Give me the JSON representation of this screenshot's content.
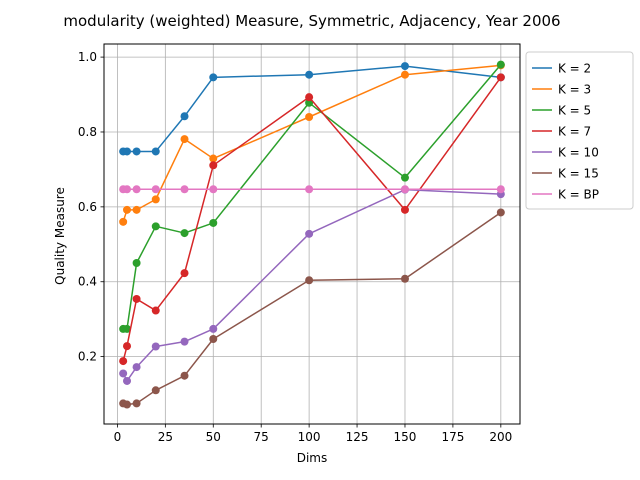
{
  "chart_data": {
    "type": "line",
    "title": "modularity (weighted) Measure, Symmetric, Adjacency, Year 2006",
    "xlabel": "Dims",
    "ylabel": "Quality Measure",
    "xlim": [
      -7,
      210
    ],
    "ylim": [
      0.02,
      1.035
    ],
    "xticks": [
      0,
      25,
      50,
      75,
      100,
      125,
      150,
      175,
      200
    ],
    "yticks": [
      0.2,
      0.4,
      0.6,
      0.8,
      1.0
    ],
    "xtick_labels": [
      "0",
      "25",
      "50",
      "75",
      "100",
      "125",
      "150",
      "175",
      "200"
    ],
    "ytick_labels": [
      "0.2",
      "0.4",
      "0.6",
      "0.8",
      "1.0"
    ],
    "grid": true,
    "legend_position": "outside-top-right",
    "x": [
      3,
      5,
      10,
      20,
      35,
      50,
      100,
      150,
      200
    ],
    "series": [
      {
        "name": "K = 2",
        "color": "#1f77b4",
        "values": [
          0.748,
          0.748,
          0.748,
          0.748,
          0.842,
          0.946,
          0.953,
          0.976,
          0.946
        ]
      },
      {
        "name": "K = 3",
        "color": "#ff7f0e",
        "values": [
          0.56,
          0.592,
          0.592,
          0.62,
          0.781,
          0.729,
          0.84,
          0.953,
          0.978
        ]
      },
      {
        "name": "K = 5",
        "color": "#2ca02c",
        "values": [
          0.274,
          0.274,
          0.45,
          0.548,
          0.53,
          0.557,
          0.878,
          0.678,
          0.98
        ]
      },
      {
        "name": "K = 7",
        "color": "#d62728",
        "values": [
          0.188,
          0.228,
          0.354,
          0.323,
          0.423,
          0.711,
          0.893,
          0.592,
          0.946
        ]
      },
      {
        "name": "K = 10",
        "color": "#9467bd",
        "values": [
          0.155,
          0.135,
          0.172,
          0.227,
          0.24,
          0.274,
          0.528,
          0.646,
          0.634
        ]
      },
      {
        "name": "K = 15",
        "color": "#8c564b",
        "values": [
          0.075,
          0.072,
          0.075,
          0.11,
          0.149,
          0.247,
          0.404,
          0.408,
          0.585
        ]
      },
      {
        "name": "K = BP",
        "color": "#e377c2",
        "values": [
          0.647,
          0.647,
          0.647,
          0.647,
          0.647,
          0.647,
          0.647,
          0.647,
          0.647
        ]
      }
    ]
  }
}
